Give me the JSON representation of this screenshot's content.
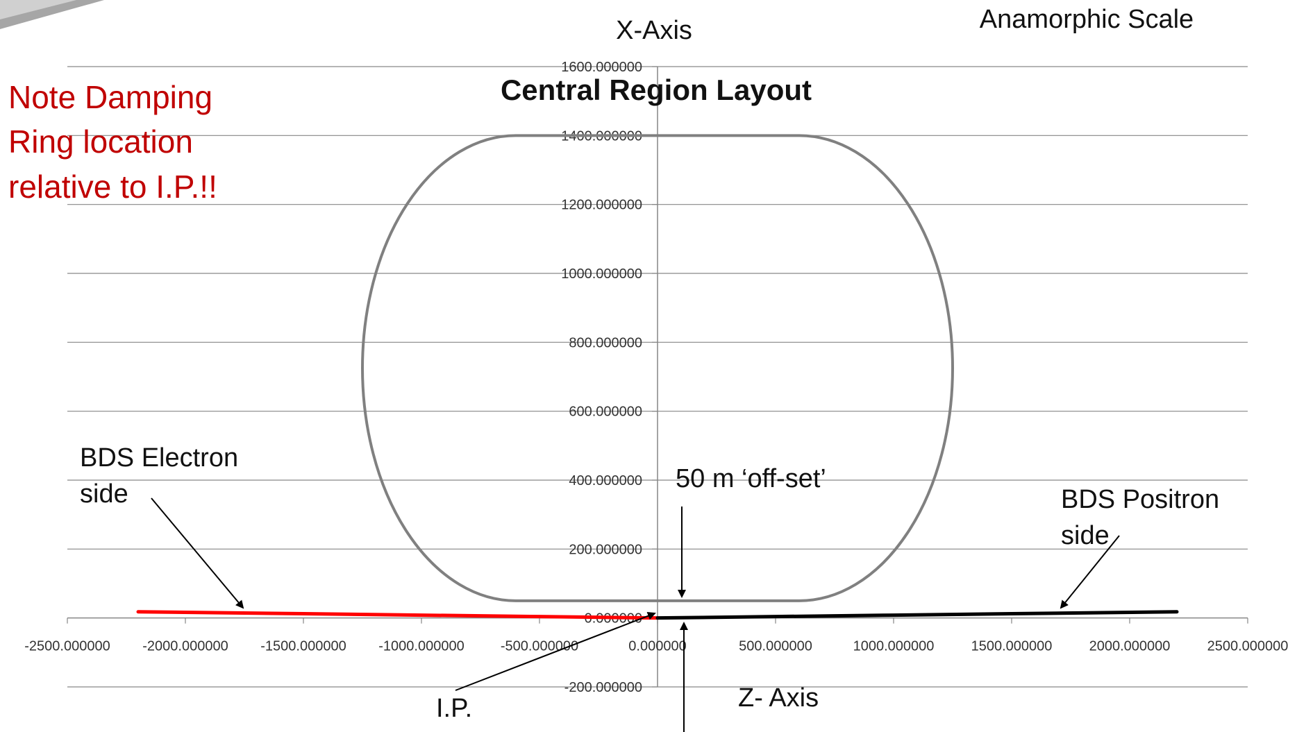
{
  "chart_data": {
    "type": "scatter",
    "title": "Central Region Layout",
    "xlabel": "Z- Axis",
    "ylabel": "X-Axis",
    "xlim": [
      -2500,
      2500
    ],
    "ylim": [
      -200,
      1600
    ],
    "x_ticks": [
      -2500,
      -2000,
      -1500,
      -1000,
      -500,
      0,
      500,
      1000,
      1500,
      2000,
      2500
    ],
    "x_tick_labels": [
      "-2500.000000",
      "-2000.000000",
      "-1500.000000",
      "-1000.000000",
      "-500.000000",
      "0.000000",
      "500.000000",
      "1000.000000",
      "1500.000000",
      "2000.000000",
      "2500.000000"
    ],
    "y_ticks": [
      -200,
      0,
      200,
      400,
      600,
      800,
      1000,
      1200,
      1400,
      1600
    ],
    "y_tick_labels": [
      "-200.000000",
      "0.000000",
      "200.000000",
      "400.000000",
      "600.000000",
      "800.000000",
      "1000.000000",
      "1200.000000",
      "1400.000000",
      "1600.000000"
    ],
    "grid": true,
    "series": [
      {
        "color": "#808080",
        "shape": "rounded-ring",
        "ring": {
          "z_min": -1250,
          "z_max": 1250,
          "x_min": 50,
          "x_max": 1400,
          "straight_z": [
            -600,
            600
          ]
        }
      },
      {
        "color": "#ff0000",
        "x": [
          -2200,
          -1500,
          -1000,
          -500,
          0
        ],
        "y": [
          18,
          12.3,
          8.2,
          4.1,
          0
        ]
      },
      {
        "color": "#000000",
        "x": [
          0,
          500,
          1000,
          1500,
          2200
        ],
        "y": [
          0,
          4.1,
          8.2,
          12.3,
          18
        ]
      }
    ]
  },
  "annotations": {
    "scale_note": "Anamorphic Scale",
    "x_axis_label": "X-Axis",
    "z_axis_label": "Z- Axis",
    "note_lines": [
      "Note Damping",
      "Ring location",
      "relative to I.P.!!"
    ],
    "electron_lines": [
      "BDS Electron",
      "side"
    ],
    "positron_lines": [
      "BDS Positron",
      "side"
    ],
    "offset_label": "50 m ‘off-set’",
    "ip_label": "I.P."
  }
}
